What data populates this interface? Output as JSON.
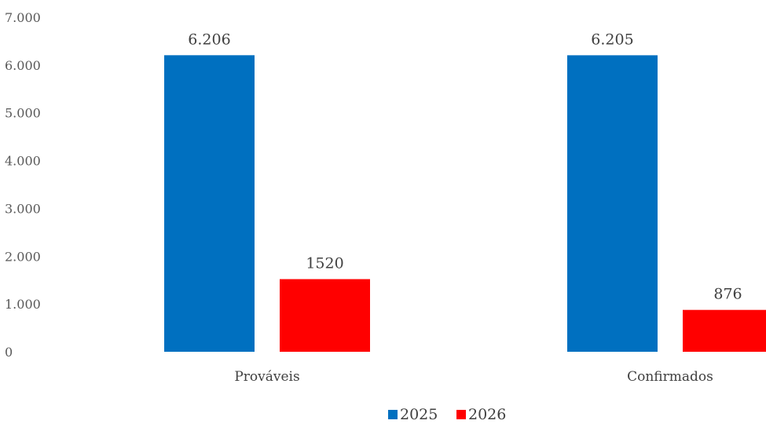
{
  "chart_data": {
    "type": "bar",
    "categories": [
      "Prováveis",
      "Confirmados"
    ],
    "series": [
      {
        "name": "2025",
        "values": [
          6206,
          6205
        ],
        "labels": [
          "6.206",
          "6.205"
        ],
        "color": "#0070C0"
      },
      {
        "name": "2026",
        "values": [
          1520,
          876
        ],
        "labels": [
          "1520",
          "876"
        ],
        "color": "#FF0000"
      }
    ],
    "ylim": [
      0,
      7000
    ],
    "yticks": [
      0,
      1000,
      2000,
      3000,
      4000,
      5000,
      6000,
      7000
    ],
    "ytick_labels": [
      "0",
      "1.000",
      "2.000",
      "3.000",
      "4.000",
      "5.000",
      "6.000",
      "7.000"
    ],
    "grid": false,
    "legend_position": "bottom",
    "title": "",
    "xlabel": "",
    "ylabel": ""
  }
}
